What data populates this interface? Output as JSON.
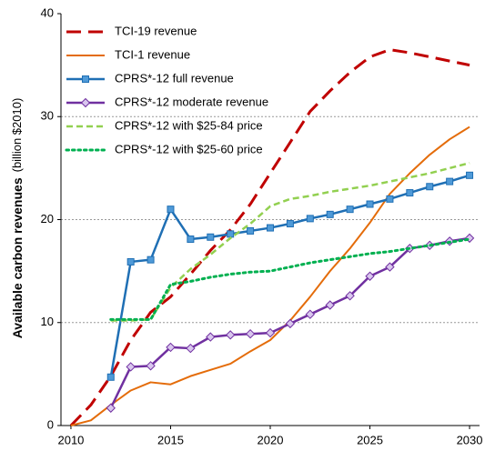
{
  "chart_data": {
    "type": "line",
    "y_label": "Available carbon revenues",
    "y_label_unit": "(billion $2010)",
    "xlim": [
      2009.5,
      2030.5
    ],
    "xticks": [
      2010,
      2015,
      2020,
      2025,
      2030
    ],
    "ylim": [
      0,
      40
    ],
    "yticks": [
      0,
      10,
      20,
      30,
      40
    ],
    "grid": true,
    "legend": "upper left",
    "series": [
      {
        "name": "TCI-19 revenue",
        "color": "#c00000",
        "style": "dashed",
        "marker": "none",
        "x": [
          2010,
          2011,
          2012,
          2013,
          2014,
          2015,
          2016,
          2017,
          2018,
          2019,
          2020,
          2021,
          2022,
          2023,
          2024,
          2025,
          2026,
          2027,
          2028,
          2029,
          2030
        ],
        "values": [
          0,
          2,
          4.8,
          8.3,
          11,
          12.5,
          14.7,
          17,
          19,
          21.5,
          24.5,
          27.5,
          30.5,
          32.5,
          34.3,
          35.8,
          36.5,
          36.2,
          35.8,
          35.4,
          35
        ]
      },
      {
        "name": "TCI-1 revenue",
        "color": "#e46c0a",
        "style": "double",
        "marker": "none",
        "x": [
          2010,
          2011,
          2012,
          2013,
          2014,
          2015,
          2016,
          2017,
          2018,
          2019,
          2020,
          2021,
          2022,
          2023,
          2024,
          2025,
          2026,
          2027,
          2028,
          2029,
          2030
        ],
        "values": [
          0,
          0.5,
          2,
          3.4,
          4.2,
          4,
          4.8,
          5.4,
          6,
          7.2,
          8.3,
          10.2,
          12.5,
          15,
          17.2,
          19.7,
          22.5,
          24.5,
          26.3,
          27.8,
          29
        ]
      },
      {
        "name": "CPRS*-12 full revenue",
        "color": "#1f6fb4",
        "style": "solid",
        "marker": "square",
        "x": [
          2012,
          2013,
          2014,
          2015,
          2016,
          2017,
          2018,
          2019,
          2020,
          2021,
          2022,
          2023,
          2024,
          2025,
          2026,
          2027,
          2028,
          2029,
          2030
        ],
        "values": [
          4.7,
          15.9,
          16.1,
          21,
          18.1,
          18.3,
          18.6,
          18.9,
          19.2,
          19.6,
          20.1,
          20.5,
          21,
          21.5,
          22,
          22.6,
          23.2,
          23.7,
          24.3
        ]
      },
      {
        "name": "CPRS*-12 moderate revenue",
        "color": "#7030a0",
        "style": "solid",
        "marker": "diamond",
        "x": [
          2012,
          2013,
          2014,
          2015,
          2016,
          2017,
          2018,
          2019,
          2020,
          2021,
          2022,
          2023,
          2024,
          2025,
          2026,
          2027,
          2028,
          2029,
          2030
        ],
        "values": [
          1.7,
          5.7,
          5.8,
          7.6,
          7.5,
          8.6,
          8.8,
          8.9,
          9,
          9.9,
          10.8,
          11.7,
          12.6,
          14.5,
          15.4,
          17.2,
          17.5,
          17.9,
          18.2
        ]
      },
      {
        "name": "CPRS*-12 with $25-84 price",
        "color": "#92d050",
        "style": "dashed",
        "marker": "none",
        "x": [
          2012,
          2013,
          2014,
          2015,
          2016,
          2017,
          2018,
          2019,
          2020,
          2021,
          2022,
          2023,
          2024,
          2025,
          2026,
          2027,
          2028,
          2029,
          2030
        ],
        "values": [
          10.2,
          10.2,
          10.3,
          13.4,
          15.2,
          16.6,
          18.2,
          19.6,
          21.3,
          22,
          22.3,
          22.7,
          23,
          23.3,
          23.7,
          24.1,
          24.5,
          25,
          25.5
        ]
      },
      {
        "name": "CPRS*-12 with $25-60 price",
        "color": "#00b050",
        "style": "dotted",
        "marker": "none",
        "x": [
          2012,
          2013,
          2014,
          2015,
          2016,
          2017,
          2018,
          2019,
          2020,
          2021,
          2022,
          2023,
          2024,
          2025,
          2026,
          2027,
          2028,
          2029,
          2030
        ],
        "values": [
          10.3,
          10.3,
          10.3,
          13.7,
          14,
          14.4,
          14.7,
          14.9,
          15,
          15.4,
          15.8,
          16.1,
          16.4,
          16.7,
          16.9,
          17.2,
          17.5,
          17.8,
          18.1
        ]
      }
    ]
  }
}
